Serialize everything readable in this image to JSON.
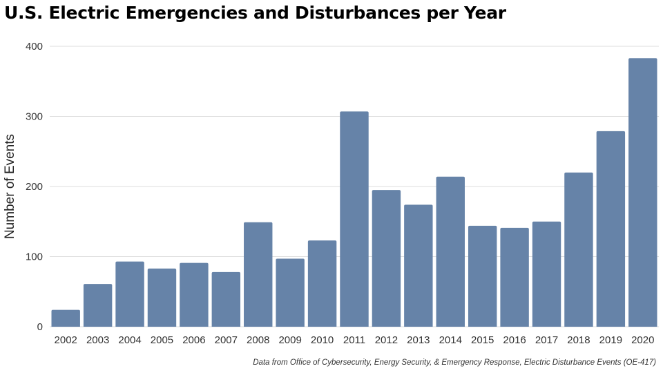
{
  "chart_data": {
    "type": "bar",
    "title": "U.S. Electric Emergencies and Disturbances per Year",
    "xlabel": "",
    "ylabel": "Number of Events",
    "categories": [
      "2002",
      "2003",
      "2004",
      "2005",
      "2006",
      "2007",
      "2008",
      "2009",
      "2010",
      "2011",
      "2012",
      "2013",
      "2014",
      "2015",
      "2016",
      "2017",
      "2018",
      "2019",
      "2020"
    ],
    "values": [
      24,
      61,
      93,
      83,
      91,
      78,
      149,
      97,
      123,
      307,
      195,
      174,
      214,
      144,
      141,
      150,
      220,
      279,
      383
    ],
    "ylim": [
      0,
      400
    ],
    "yticks": [
      0,
      100,
      200,
      300,
      400
    ],
    "grid": true,
    "bar_color": "#6683a8",
    "source": "Data from Office of Cybersecurity, Energy Security, & Emergency Response, Electric Disturbance Events (OE-417)"
  }
}
